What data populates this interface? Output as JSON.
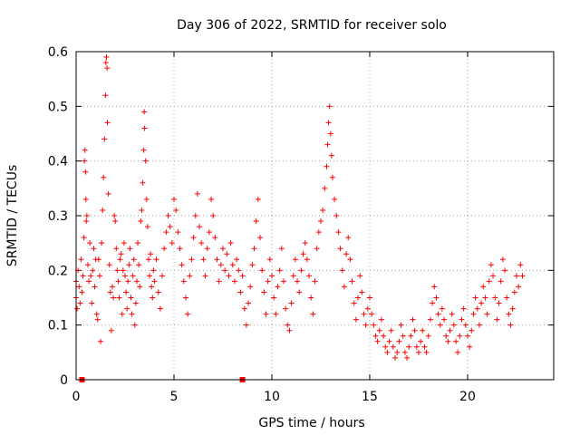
{
  "chart_data": {
    "type": "scatter",
    "title": "Day 306 of 2022, SRMTID for receiver solo",
    "xlabel": "GPS time / hours",
    "ylabel": "SRMTID / TECUs",
    "xlim": [
      0,
      24.4
    ],
    "ylim": [
      0,
      0.6
    ],
    "x_ticks": [
      0,
      5,
      10,
      15,
      20
    ],
    "x_tick_labels": [
      "0",
      "5",
      "10",
      "15",
      "20"
    ],
    "y_ticks": [
      0,
      0.1,
      0.2,
      0.3,
      0.4,
      0.5,
      0.6
    ],
    "y_tick_labels": [
      "0",
      "0.1",
      "0.2",
      "0.3",
      "0.4",
      "0.5",
      "0.6"
    ],
    "grid": true,
    "marker": "+",
    "color": "#ff0000",
    "series": [
      {
        "name": "SRMTID",
        "points": [
          [
            0.0,
            0.15
          ],
          [
            0.0,
            0.18
          ],
          [
            0.05,
            0.13
          ],
          [
            0.1,
            0.2
          ],
          [
            0.15,
            0.17
          ],
          [
            0.2,
            0.14
          ],
          [
            0.25,
            0.22
          ],
          [
            0.3,
            0.16
          ],
          [
            0.35,
            0.19
          ],
          [
            0.4,
            0.26
          ],
          [
            0.42,
            0.4
          ],
          [
            0.45,
            0.42
          ],
          [
            0.48,
            0.38
          ],
          [
            0.5,
            0.33
          ],
          [
            0.52,
            0.29
          ],
          [
            0.55,
            0.3
          ],
          [
            0.6,
            0.21
          ],
          [
            0.65,
            0.18
          ],
          [
            0.7,
            0.25
          ],
          [
            0.75,
            0.19
          ],
          [
            0.8,
            0.14
          ],
          [
            0.85,
            0.2
          ],
          [
            0.9,
            0.24
          ],
          [
            0.95,
            0.17
          ],
          [
            1.0,
            0.22
          ],
          [
            1.05,
            0.12
          ],
          [
            1.1,
            0.11
          ],
          [
            1.15,
            0.22
          ],
          [
            1.2,
            0.19
          ],
          [
            1.25,
            0.07
          ],
          [
            1.3,
            0.25
          ],
          [
            1.35,
            0.31
          ],
          [
            1.4,
            0.37
          ],
          [
            1.45,
            0.44
          ],
          [
            1.5,
            0.52
          ],
          [
            1.52,
            0.58
          ],
          [
            1.55,
            0.59
          ],
          [
            1.58,
            0.57
          ],
          [
            1.6,
            0.47
          ],
          [
            1.65,
            0.34
          ],
          [
            1.7,
            0.21
          ],
          [
            1.75,
            0.16
          ],
          [
            1.8,
            0.09
          ],
          [
            1.85,
            0.17
          ],
          [
            1.9,
            0.15
          ],
          [
            1.95,
            0.3
          ],
          [
            2.0,
            0.29
          ],
          [
            2.05,
            0.24
          ],
          [
            2.1,
            0.2
          ],
          [
            2.15,
            0.18
          ],
          [
            2.2,
            0.15
          ],
          [
            2.25,
            0.22
          ],
          [
            2.3,
            0.23
          ],
          [
            2.35,
            0.12
          ],
          [
            2.4,
            0.2
          ],
          [
            2.45,
            0.25
          ],
          [
            2.5,
            0.19
          ],
          [
            2.55,
            0.16
          ],
          [
            2.6,
            0.13
          ],
          [
            2.65,
            0.18
          ],
          [
            2.7,
            0.21
          ],
          [
            2.75,
            0.24
          ],
          [
            2.8,
            0.15
          ],
          [
            2.85,
            0.12
          ],
          [
            2.9,
            0.19
          ],
          [
            2.95,
            0.22
          ],
          [
            3.0,
            0.1
          ],
          [
            3.05,
            0.14
          ],
          [
            3.1,
            0.18
          ],
          [
            3.15,
            0.25
          ],
          [
            3.2,
            0.21
          ],
          [
            3.25,
            0.17
          ],
          [
            3.3,
            0.29
          ],
          [
            3.35,
            0.31
          ],
          [
            3.4,
            0.36
          ],
          [
            3.45,
            0.42
          ],
          [
            3.48,
            0.49
          ],
          [
            3.5,
            0.46
          ],
          [
            3.55,
            0.4
          ],
          [
            3.6,
            0.33
          ],
          [
            3.65,
            0.28
          ],
          [
            3.7,
            0.22
          ],
          [
            3.75,
            0.19
          ],
          [
            3.8,
            0.23
          ],
          [
            3.85,
            0.17
          ],
          [
            3.9,
            0.15
          ],
          [
            3.95,
            0.2
          ],
          [
            4.0,
            0.18
          ],
          [
            4.1,
            0.22
          ],
          [
            4.2,
            0.16
          ],
          [
            4.3,
            0.13
          ],
          [
            4.4,
            0.19
          ],
          [
            4.5,
            0.24
          ],
          [
            4.6,
            0.27
          ],
          [
            4.7,
            0.3
          ],
          [
            4.8,
            0.28
          ],
          [
            4.9,
            0.25
          ],
          [
            5.0,
            0.33
          ],
          [
            5.1,
            0.31
          ],
          [
            5.2,
            0.27
          ],
          [
            5.3,
            0.24
          ],
          [
            5.4,
            0.21
          ],
          [
            5.5,
            0.18
          ],
          [
            5.6,
            0.15
          ],
          [
            5.7,
            0.12
          ],
          [
            5.8,
            0.19
          ],
          [
            5.9,
            0.22
          ],
          [
            6.0,
            0.26
          ],
          [
            6.1,
            0.3
          ],
          [
            6.2,
            0.34
          ],
          [
            6.3,
            0.28
          ],
          [
            6.4,
            0.25
          ],
          [
            6.5,
            0.22
          ],
          [
            6.6,
            0.19
          ],
          [
            6.7,
            0.24
          ],
          [
            6.8,
            0.27
          ],
          [
            6.9,
            0.33
          ],
          [
            7.0,
            0.3
          ],
          [
            7.1,
            0.26
          ],
          [
            7.2,
            0.22
          ],
          [
            7.3,
            0.18
          ],
          [
            7.4,
            0.21
          ],
          [
            7.5,
            0.24
          ],
          [
            7.6,
            0.2
          ],
          [
            7.7,
            0.23
          ],
          [
            7.8,
            0.19
          ],
          [
            7.9,
            0.25
          ],
          [
            8.0,
            0.21
          ],
          [
            8.1,
            0.18
          ],
          [
            8.2,
            0.22
          ],
          [
            8.3,
            0.2
          ],
          [
            8.4,
            0.16
          ],
          [
            8.5,
            0.19
          ],
          [
            8.6,
            0.13
          ],
          [
            8.7,
            0.1
          ],
          [
            8.8,
            0.14
          ],
          [
            8.9,
            0.17
          ],
          [
            9.0,
            0.21
          ],
          [
            9.1,
            0.24
          ],
          [
            9.2,
            0.29
          ],
          [
            9.3,
            0.33
          ],
          [
            9.4,
            0.26
          ],
          [
            9.5,
            0.2
          ],
          [
            9.6,
            0.16
          ],
          [
            9.7,
            0.12
          ],
          [
            9.8,
            0.18
          ],
          [
            9.9,
            0.22
          ],
          [
            10.0,
            0.19
          ],
          [
            10.1,
            0.15
          ],
          [
            10.2,
            0.12
          ],
          [
            10.3,
            0.17
          ],
          [
            10.4,
            0.2
          ],
          [
            10.5,
            0.24
          ],
          [
            10.6,
            0.18
          ],
          [
            10.7,
            0.13
          ],
          [
            10.8,
            0.1
          ],
          [
            10.9,
            0.09
          ],
          [
            11.0,
            0.14
          ],
          [
            11.1,
            0.19
          ],
          [
            11.2,
            0.22
          ],
          [
            11.3,
            0.18
          ],
          [
            11.4,
            0.16
          ],
          [
            11.5,
            0.2
          ],
          [
            11.6,
            0.23
          ],
          [
            11.7,
            0.25
          ],
          [
            11.8,
            0.22
          ],
          [
            11.9,
            0.19
          ],
          [
            12.0,
            0.15
          ],
          [
            12.1,
            0.12
          ],
          [
            12.2,
            0.18
          ],
          [
            12.3,
            0.24
          ],
          [
            12.4,
            0.27
          ],
          [
            12.5,
            0.29
          ],
          [
            12.6,
            0.31
          ],
          [
            12.7,
            0.35
          ],
          [
            12.8,
            0.39
          ],
          [
            12.85,
            0.43
          ],
          [
            12.9,
            0.47
          ],
          [
            12.95,
            0.5
          ],
          [
            13.0,
            0.45
          ],
          [
            13.05,
            0.41
          ],
          [
            13.1,
            0.37
          ],
          [
            13.2,
            0.33
          ],
          [
            13.3,
            0.3
          ],
          [
            13.4,
            0.27
          ],
          [
            13.5,
            0.24
          ],
          [
            13.6,
            0.2
          ],
          [
            13.7,
            0.17
          ],
          [
            13.8,
            0.23
          ],
          [
            13.9,
            0.26
          ],
          [
            14.0,
            0.22
          ],
          [
            14.1,
            0.18
          ],
          [
            14.2,
            0.14
          ],
          [
            14.3,
            0.11
          ],
          [
            14.4,
            0.15
          ],
          [
            14.5,
            0.19
          ],
          [
            14.6,
            0.16
          ],
          [
            14.7,
            0.12
          ],
          [
            14.8,
            0.1
          ],
          [
            14.9,
            0.13
          ],
          [
            15.0,
            0.15
          ],
          [
            15.1,
            0.12
          ],
          [
            15.2,
            0.1
          ],
          [
            15.3,
            0.08
          ],
          [
            15.4,
            0.07
          ],
          [
            15.5,
            0.09
          ],
          [
            15.6,
            0.11
          ],
          [
            15.7,
            0.08
          ],
          [
            15.8,
            0.06
          ],
          [
            15.9,
            0.05
          ],
          [
            16.0,
            0.07
          ],
          [
            16.1,
            0.09
          ],
          [
            16.2,
            0.06
          ],
          [
            16.3,
            0.04
          ],
          [
            16.4,
            0.05
          ],
          [
            16.5,
            0.07
          ],
          [
            16.6,
            0.1
          ],
          [
            16.7,
            0.08
          ],
          [
            16.8,
            0.05
          ],
          [
            16.9,
            0.04
          ],
          [
            17.0,
            0.06
          ],
          [
            17.1,
            0.08
          ],
          [
            17.2,
            0.11
          ],
          [
            17.3,
            0.09
          ],
          [
            17.4,
            0.06
          ],
          [
            17.5,
            0.05
          ],
          [
            17.6,
            0.07
          ],
          [
            17.7,
            0.09
          ],
          [
            17.8,
            0.06
          ],
          [
            17.9,
            0.05
          ],
          [
            18.0,
            0.08
          ],
          [
            18.1,
            0.11
          ],
          [
            18.2,
            0.14
          ],
          [
            18.3,
            0.17
          ],
          [
            18.4,
            0.15
          ],
          [
            18.5,
            0.12
          ],
          [
            18.6,
            0.1
          ],
          [
            18.7,
            0.13
          ],
          [
            18.8,
            0.11
          ],
          [
            18.9,
            0.08
          ],
          [
            19.0,
            0.07
          ],
          [
            19.1,
            0.09
          ],
          [
            19.2,
            0.12
          ],
          [
            19.3,
            0.1
          ],
          [
            19.4,
            0.07
          ],
          [
            19.5,
            0.05
          ],
          [
            19.6,
            0.08
          ],
          [
            19.7,
            0.11
          ],
          [
            19.8,
            0.13
          ],
          [
            19.9,
            0.1
          ],
          [
            20.0,
            0.08
          ],
          [
            20.1,
            0.06
          ],
          [
            20.2,
            0.09
          ],
          [
            20.3,
            0.12
          ],
          [
            20.4,
            0.15
          ],
          [
            20.5,
            0.13
          ],
          [
            20.6,
            0.1
          ],
          [
            20.7,
            0.14
          ],
          [
            20.8,
            0.17
          ],
          [
            20.9,
            0.15
          ],
          [
            21.0,
            0.12
          ],
          [
            21.1,
            0.18
          ],
          [
            21.2,
            0.21
          ],
          [
            21.3,
            0.19
          ],
          [
            21.4,
            0.15
          ],
          [
            21.5,
            0.11
          ],
          [
            21.6,
            0.14
          ],
          [
            21.7,
            0.18
          ],
          [
            21.8,
            0.22
          ],
          [
            21.9,
            0.2
          ],
          [
            22.0,
            0.15
          ],
          [
            22.1,
            0.12
          ],
          [
            22.2,
            0.1
          ],
          [
            22.3,
            0.13
          ],
          [
            22.4,
            0.16
          ],
          [
            22.5,
            0.19
          ],
          [
            22.6,
            0.17
          ],
          [
            22.7,
            0.21
          ],
          [
            22.8,
            0.19
          ]
        ]
      }
    ],
    "zero_markers": [
      0.3,
      8.5
    ]
  }
}
